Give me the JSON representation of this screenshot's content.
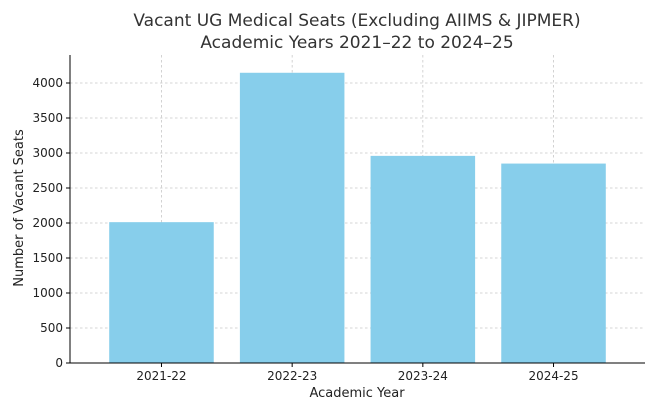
{
  "chart_data": {
    "type": "bar",
    "title": [
      "Vacant UG Medical Seats (Excluding AIIMS & JIPMER)",
      "Academic Years 2021–22 to 2024–25"
    ],
    "xlabel": "Academic Year",
    "ylabel": "Number of Vacant Seats",
    "categories": [
      "2021-22",
      "2022-23",
      "2023-24",
      "2024-25"
    ],
    "values": [
      2012,
      4146,
      2959,
      2849
    ],
    "ylim": [
      0,
      4400
    ],
    "yticks": [
      0,
      500,
      1000,
      1500,
      2000,
      2500,
      3000,
      3500,
      4000
    ],
    "grid": true,
    "bar_color": "#87ceeb"
  }
}
